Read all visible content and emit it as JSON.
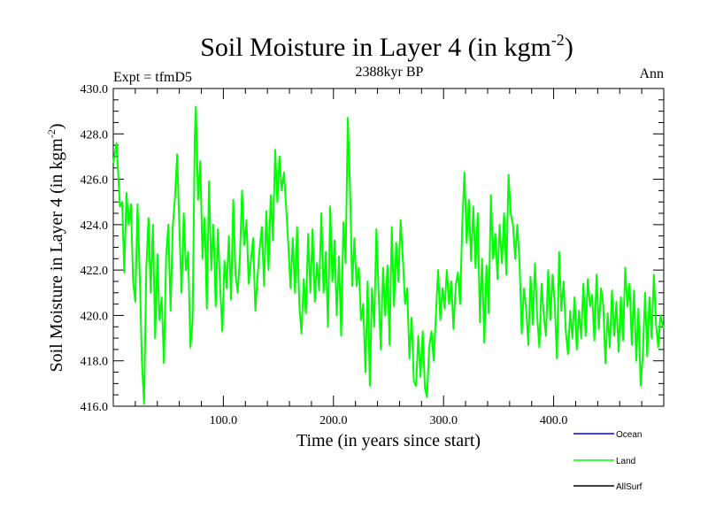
{
  "header": {
    "title_main": "Soil Moisture in Layer 4 (in kgm",
    "title_sup": "-2",
    "title_close": ")",
    "expt": "Expt = tfmD5",
    "period": "2388kyr BP",
    "season": "Ann"
  },
  "axes": {
    "xlabel": "Time (in years since start)",
    "ylabel_main": "Soil Moisture in Layer 4 (in kgm",
    "ylabel_sup": "-2",
    "ylabel_close": ")"
  },
  "chart_data": {
    "type": "line",
    "title": "Soil Moisture in Layer 4 (in kgm-2)",
    "subtitle": "2388kyr BP",
    "xlabel": "Time (in years since start)",
    "ylabel": "Soil Moisture in Layer 4 (in kgm-2)",
    "xlim": [
      0,
      500
    ],
    "ylim": [
      416,
      430
    ],
    "x_ticks": [
      100,
      200,
      300,
      400
    ],
    "x_tick_labels": [
      "100.0",
      "200.0",
      "300.0",
      "400.0"
    ],
    "y_ticks": [
      416,
      418,
      420,
      422,
      424,
      426,
      428,
      430
    ],
    "y_tick_labels": [
      "416.0",
      "418.0",
      "420.0",
      "422.0",
      "424.0",
      "426.0",
      "428.0",
      "430.0"
    ],
    "legend_position": "bottom-right",
    "series": [
      {
        "name": "Ocean",
        "color": "#0000ff",
        "points": []
      },
      {
        "name": "Land",
        "color": "#00ff00",
        "points": [
          [
            0,
            426.7
          ],
          [
            3,
            427.6
          ],
          [
            6,
            424.8
          ],
          [
            8,
            425.0
          ],
          [
            10,
            421.9
          ],
          [
            12,
            425.4
          ],
          [
            14,
            424.0
          ],
          [
            16,
            424.9
          ],
          [
            18,
            421.5
          ],
          [
            20,
            420.6
          ],
          [
            22,
            424.9
          ],
          [
            24,
            421.8
          ],
          [
            26,
            418.0
          ],
          [
            28,
            416.1
          ],
          [
            30,
            422.1
          ],
          [
            32,
            424.3
          ],
          [
            34,
            421.0
          ],
          [
            36,
            424.0
          ],
          [
            38,
            419.0
          ],
          [
            40,
            422.7
          ],
          [
            42,
            419.8
          ],
          [
            44,
            420.8
          ],
          [
            46,
            417.9
          ],
          [
            48,
            422.6
          ],
          [
            50,
            424.0
          ],
          [
            52,
            420.2
          ],
          [
            54,
            423.9
          ],
          [
            56,
            425.2
          ],
          [
            58,
            427.1
          ],
          [
            60,
            424.0
          ],
          [
            62,
            421.0
          ],
          [
            64,
            424.5
          ],
          [
            66,
            422.0
          ],
          [
            68,
            422.8
          ],
          [
            70,
            418.6
          ],
          [
            72,
            419.8
          ],
          [
            74,
            427.9
          ],
          [
            75,
            429.2
          ],
          [
            77,
            425.1
          ],
          [
            79,
            426.8
          ],
          [
            81,
            422.5
          ],
          [
            83,
            424.3
          ],
          [
            85,
            420.3
          ],
          [
            87,
            425.9
          ],
          [
            89,
            422.0
          ],
          [
            91,
            424.0
          ],
          [
            93,
            420.4
          ],
          [
            95,
            423.8
          ],
          [
            97,
            421.3
          ],
          [
            99,
            419.3
          ],
          [
            101,
            422.4
          ],
          [
            103,
            421.2
          ],
          [
            105,
            423.5
          ],
          [
            107,
            420.7
          ],
          [
            109,
            425.1
          ],
          [
            111,
            421.8
          ],
          [
            113,
            421.0
          ],
          [
            115,
            422.6
          ],
          [
            117,
            425.5
          ],
          [
            119,
            423.1
          ],
          [
            121,
            424.2
          ],
          [
            123,
            421.4
          ],
          [
            125,
            422.4
          ],
          [
            127,
            423.4
          ],
          [
            129,
            420.2
          ],
          [
            131,
            421.7
          ],
          [
            133,
            423.0
          ],
          [
            135,
            423.9
          ],
          [
            137,
            421.3
          ],
          [
            139,
            424.6
          ],
          [
            141,
            422.0
          ],
          [
            143,
            425.3
          ],
          [
            145,
            423.3
          ],
          [
            147,
            427.3
          ],
          [
            149,
            425.0
          ],
          [
            151,
            427.0
          ],
          [
            153,
            425.5
          ],
          [
            155,
            426.3
          ],
          [
            157,
            424.8
          ],
          [
            159,
            423.1
          ],
          [
            161,
            421.2
          ],
          [
            163,
            423.4
          ],
          [
            165,
            421.0
          ],
          [
            167,
            423.9
          ],
          [
            169,
            420.5
          ],
          [
            171,
            419.2
          ],
          [
            173,
            421.6
          ],
          [
            175,
            420.1
          ],
          [
            177,
            423.6
          ],
          [
            179,
            421.0
          ],
          [
            181,
            423.8
          ],
          [
            183,
            420.6
          ],
          [
            185,
            422.3
          ],
          [
            187,
            421.1
          ],
          [
            189,
            424.5
          ],
          [
            191,
            421.0
          ],
          [
            193,
            422.8
          ],
          [
            195,
            419.5
          ],
          [
            197,
            424.8
          ],
          [
            199,
            421.5
          ],
          [
            201,
            423.3
          ],
          [
            203,
            420.0
          ],
          [
            205,
            422.6
          ],
          [
            207,
            419.1
          ],
          [
            209,
            424.1
          ],
          [
            211,
            422.3
          ],
          [
            213,
            428.7
          ],
          [
            215,
            425.7
          ],
          [
            217,
            421.3
          ],
          [
            219,
            423.4
          ],
          [
            221,
            421.3
          ],
          [
            223,
            422.1
          ],
          [
            225,
            419.8
          ],
          [
            227,
            420.5
          ],
          [
            229,
            417.5
          ],
          [
            231,
            421.5
          ],
          [
            233,
            416.9
          ],
          [
            235,
            421.2
          ],
          [
            237,
            419.5
          ],
          [
            239,
            423.8
          ],
          [
            241,
            421.0
          ],
          [
            243,
            418.5
          ],
          [
            245,
            422.1
          ],
          [
            247,
            420.0
          ],
          [
            249,
            422.2
          ],
          [
            251,
            418.7
          ],
          [
            253,
            423.9
          ],
          [
            255,
            420.4
          ],
          [
            257,
            423.2
          ],
          [
            259,
            421.5
          ],
          [
            261,
            424.2
          ],
          [
            263,
            422.5
          ],
          [
            265,
            420.5
          ],
          [
            267,
            421.2
          ],
          [
            269,
            418.1
          ],
          [
            271,
            419.9
          ],
          [
            273,
            417.1
          ],
          [
            275,
            416.9
          ],
          [
            277,
            419.1
          ],
          [
            279,
            417.3
          ],
          [
            281,
            419.3
          ],
          [
            283,
            416.8
          ],
          [
            285,
            416.4
          ],
          [
            287,
            418.6
          ],
          [
            289,
            419.3
          ],
          [
            291,
            418.0
          ],
          [
            293,
            420.0
          ],
          [
            295,
            422.0
          ],
          [
            297,
            419.8
          ],
          [
            299,
            421.2
          ],
          [
            301,
            420.3
          ],
          [
            303,
            422.0
          ],
          [
            305,
            420.5
          ],
          [
            307,
            421.5
          ],
          [
            309,
            419.4
          ],
          [
            311,
            421.3
          ],
          [
            313,
            421.9
          ],
          [
            315,
            420.5
          ],
          [
            317,
            424.0
          ],
          [
            319,
            426.3
          ],
          [
            321,
            423.2
          ],
          [
            323,
            425.1
          ],
          [
            325,
            422.4
          ],
          [
            327,
            424.8
          ],
          [
            329,
            422.1
          ],
          [
            331,
            424.5
          ],
          [
            333,
            419.7
          ],
          [
            335,
            422.5
          ],
          [
            337,
            418.8
          ],
          [
            339,
            422.2
          ],
          [
            341,
            420.1
          ],
          [
            343,
            425.3
          ],
          [
            345,
            422.5
          ],
          [
            347,
            423.6
          ],
          [
            349,
            421.6
          ],
          [
            351,
            424.0
          ],
          [
            353,
            422.3
          ],
          [
            355,
            424.5
          ],
          [
            357,
            421.8
          ],
          [
            359,
            426.2
          ],
          [
            361,
            424.5
          ],
          [
            363,
            424.0
          ],
          [
            365,
            422.5
          ],
          [
            367,
            424.0
          ],
          [
            369,
            422.4
          ],
          [
            371,
            419.2
          ],
          [
            373,
            421.2
          ],
          [
            375,
            420.3
          ],
          [
            377,
            418.7
          ],
          [
            379,
            421.7
          ],
          [
            381,
            419.6
          ],
          [
            383,
            422.3
          ],
          [
            385,
            420.0
          ],
          [
            387,
            418.6
          ],
          [
            389,
            421.4
          ],
          [
            391,
            420.0
          ],
          [
            393,
            419.1
          ],
          [
            395,
            422.0
          ],
          [
            397,
            419.8
          ],
          [
            399,
            421.8
          ],
          [
            401,
            420.5
          ],
          [
            403,
            418.1
          ],
          [
            405,
            422.8
          ],
          [
            407,
            420.2
          ],
          [
            409,
            421.5
          ],
          [
            411,
            419.3
          ],
          [
            413,
            418.3
          ],
          [
            415,
            420.2
          ],
          [
            417,
            419.0
          ],
          [
            419,
            420.8
          ],
          [
            421,
            418.5
          ],
          [
            423,
            420.2
          ],
          [
            425,
            419.0
          ],
          [
            427,
            421.4
          ],
          [
            429,
            419.1
          ],
          [
            431,
            421.6
          ],
          [
            433,
            420.4
          ],
          [
            435,
            420.9
          ],
          [
            437,
            418.9
          ],
          [
            439,
            421.8
          ],
          [
            441,
            419.4
          ],
          [
            443,
            421.2
          ],
          [
            445,
            420.5
          ],
          [
            447,
            417.9
          ],
          [
            449,
            420.1
          ],
          [
            451,
            418.6
          ],
          [
            453,
            421.1
          ],
          [
            455,
            419.1
          ],
          [
            457,
            420.6
          ],
          [
            459,
            418.4
          ],
          [
            461,
            420.8
          ],
          [
            463,
            418.9
          ],
          [
            465,
            422.1
          ],
          [
            467,
            420.4
          ],
          [
            469,
            421.4
          ],
          [
            471,
            418.7
          ],
          [
            473,
            421.1
          ],
          [
            475,
            418.0
          ],
          [
            477,
            420.3
          ],
          [
            479,
            416.9
          ],
          [
            481,
            418.3
          ],
          [
            483,
            421.0
          ],
          [
            485,
            418.2
          ],
          [
            487,
            420.8
          ],
          [
            489,
            419.0
          ],
          [
            491,
            421.8
          ],
          [
            493,
            419.6
          ],
          [
            495,
            418.6
          ],
          [
            497,
            420.0
          ],
          [
            500,
            419.4
          ]
        ]
      },
      {
        "name": "AllSurf",
        "color": "#000000",
        "points": []
      }
    ]
  }
}
